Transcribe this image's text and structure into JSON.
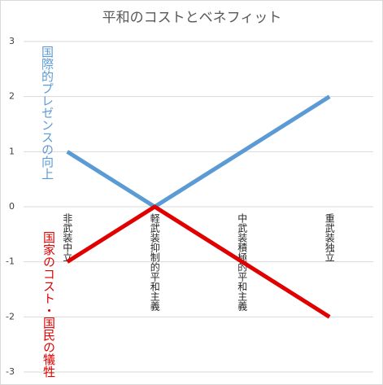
{
  "chart_data": {
    "type": "line",
    "title": "平和のコストとベネフィット",
    "categories": [
      "非武装中立",
      "軽武装抑制的平和主義",
      "中武装積極的平和主義",
      "重武装独立"
    ],
    "series": [
      {
        "name": "国際的プレゼンスの向上",
        "color": "#5b9bd5",
        "values": [
          1,
          0,
          1,
          2
        ]
      },
      {
        "name": "国家のコスト・国民の犠牲",
        "color": "#e00000",
        "values": [
          -1,
          0,
          -1,
          -2
        ]
      }
    ],
    "ylim": [
      -3,
      3
    ],
    "yticks": [
      -3,
      -2,
      -1,
      0,
      1,
      2,
      3
    ],
    "grid": true
  }
}
